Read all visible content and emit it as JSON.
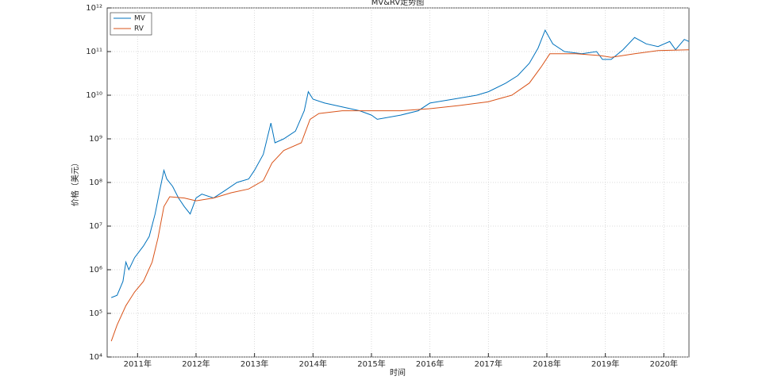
{
  "chart_data": {
    "type": "line",
    "title": "MV&RV走势图",
    "x_label": "时间",
    "y_label": "价格（美元）",
    "log_y": true,
    "grid": true,
    "legend_position": "upper-left",
    "xlim": [
      2010.48,
      2020.43
    ],
    "xticks": [
      {
        "value": 2011,
        "label": "2011年"
      },
      {
        "value": 2012,
        "label": "2012年"
      },
      {
        "value": 2013,
        "label": "2013年"
      },
      {
        "value": 2014,
        "label": "2014年"
      },
      {
        "value": 2015,
        "label": "2015年"
      },
      {
        "value": 2016,
        "label": "2016年"
      },
      {
        "value": 2017,
        "label": "2017年"
      },
      {
        "value": 2018,
        "label": "2018年"
      },
      {
        "value": 2019,
        "label": "2019年"
      },
      {
        "value": 2020,
        "label": "2020年"
      }
    ],
    "ylim": [
      10000,
      1000000000000
    ],
    "yticks": [
      {
        "value": 10000,
        "label": "10⁴"
      },
      {
        "value": 100000,
        "label": "10⁵"
      },
      {
        "value": 1000000,
        "label": "10⁶"
      },
      {
        "value": 10000000,
        "label": "10⁷"
      },
      {
        "value": 100000000,
        "label": "10⁸"
      },
      {
        "value": 1000000000,
        "label": "10⁹"
      },
      {
        "value": 10000000000,
        "label": "10¹⁰"
      },
      {
        "value": 100000000000,
        "label": "10¹¹"
      },
      {
        "value": 1000000000000,
        "label": "10¹²"
      }
    ],
    "series": [
      {
        "name": "MV",
        "color": "#0072bd",
        "x": [
          2010.55,
          2010.65,
          2010.75,
          2010.8,
          2010.85,
          2010.95,
          2011.1,
          2011.2,
          2011.3,
          2011.38,
          2011.45,
          2011.5,
          2011.6,
          2011.7,
          2011.8,
          2011.9,
          2012.0,
          2012.1,
          2012.3,
          2012.5,
          2012.7,
          2012.9,
          2013.0,
          2013.15,
          2013.28,
          2013.35,
          2013.5,
          2013.7,
          2013.85,
          2013.92,
          2014.0,
          2014.2,
          2014.5,
          2014.8,
          2015.0,
          2015.1,
          2015.5,
          2015.8,
          2016.0,
          2016.4,
          2016.8,
          2017.0,
          2017.3,
          2017.5,
          2017.7,
          2017.85,
          2017.97,
          2018.1,
          2018.3,
          2018.6,
          2018.85,
          2018.95,
          2019.1,
          2019.3,
          2019.5,
          2019.7,
          2019.9,
          2020.1,
          2020.2,
          2020.35,
          2020.43
        ],
        "values": [
          230000.0,
          260000.0,
          540000.0,
          1500000.0,
          1000000.0,
          1900000.0,
          3500000.0,
          5800000.0,
          19000000.0,
          66000000.0,
          190000000.0,
          120000000.0,
          81000000.0,
          44000000.0,
          28000000.0,
          19000000.0,
          44000000.0,
          54000000.0,
          44000000.0,
          66000000.0,
          100000000.0,
          120000000.0,
          190000000.0,
          440000000.0,
          2300000000.0,
          810000000.0,
          1000000000.0,
          1500000000.0,
          4400000000.0,
          12000000000.0,
          8100000000.0,
          6600000000.0,
          5400000000.0,
          4400000000.0,
          3500000000.0,
          2800000000.0,
          3500000000.0,
          4400000000.0,
          6600000000.0,
          8100000000.0,
          10000000000.0,
          12000000000.0,
          19000000000.0,
          28000000000.0,
          54000000000.0,
          120000000000.0,
          310000000000.0,
          150000000000.0,
          100000000000.0,
          89000000000.0,
          100000000000.0,
          66000000000.0,
          66000000000.0,
          110000000000.0,
          210000000000.0,
          150000000000.0,
          130000000000.0,
          170000000000.0,
          110000000000.0,
          190000000000.0,
          170000000000.0
        ]
      },
      {
        "name": "RV",
        "color": "#d95319",
        "x": [
          2010.55,
          2010.65,
          2010.8,
          2010.95,
          2011.1,
          2011.25,
          2011.35,
          2011.45,
          2011.55,
          2011.8,
          2012.0,
          2012.3,
          2012.6,
          2012.9,
          2013.15,
          2013.3,
          2013.5,
          2013.8,
          2013.95,
          2014.1,
          2014.5,
          2015.0,
          2015.5,
          2016.0,
          2016.5,
          2017.0,
          2017.4,
          2017.7,
          2017.9,
          2018.05,
          2018.5,
          2018.9,
          2019.1,
          2019.5,
          2019.9,
          2020.43
        ],
        "values": [
          23000.0,
          54000.0,
          150000.0,
          310000.0,
          540000.0,
          1500000.0,
          5400000.0,
          28000000.0,
          47000000.0,
          44000000.0,
          38000000.0,
          44000000.0,
          58000000.0,
          71000000.0,
          110000000.0,
          280000000.0,
          540000000.0,
          810000000.0,
          2800000000.0,
          3800000000.0,
          4400000000.0,
          4400000000.0,
          4400000000.0,
          4900000000.0,
          5800000000.0,
          7100000000.0,
          10000000000.0,
          19000000000.0,
          44000000000.0,
          89000000000.0,
          89000000000.0,
          81000000000.0,
          74000000000.0,
          89000000000.0,
          105000000000.0,
          110000000000.0
        ]
      }
    ]
  }
}
